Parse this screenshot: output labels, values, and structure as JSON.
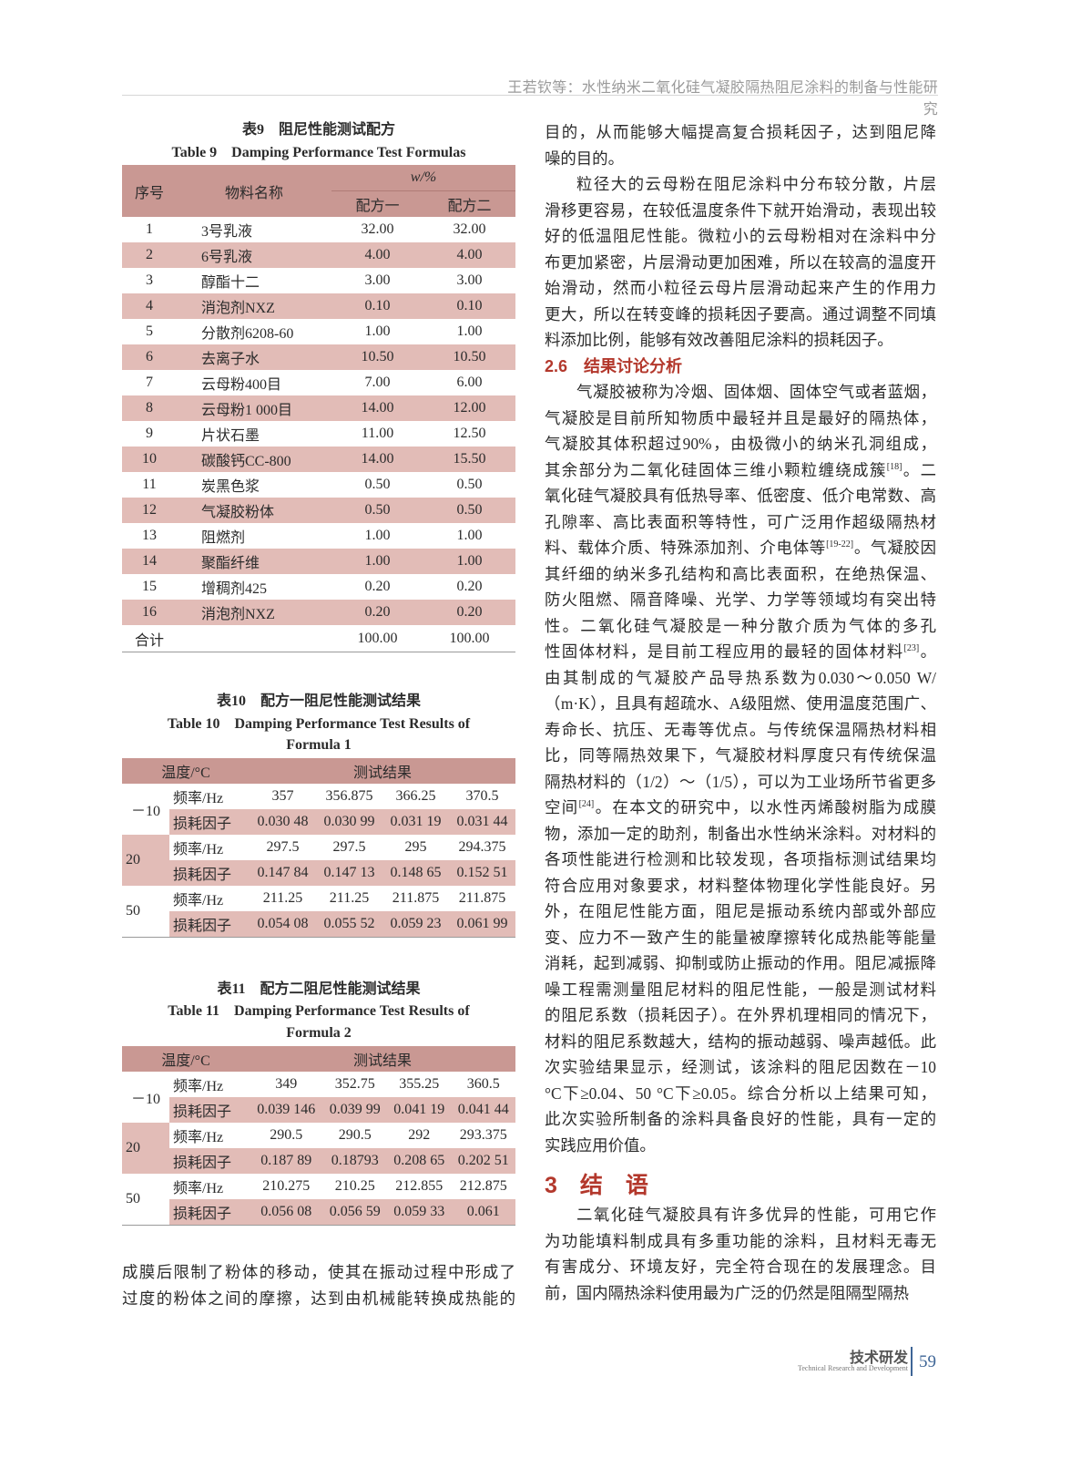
{
  "header": {
    "running_title": "王若钦等：水性纳米二氧化硅气凝胶隔热阻尼涂料的制备与性能研究"
  },
  "table9": {
    "title_cn": "表9　阻尼性能测试配方",
    "title_en": "Table 9　Damping Performance Test Formulas",
    "headers": {
      "no": "序号",
      "name": "物料名称",
      "unit": "w/%",
      "f1": "配方一",
      "f2": "配方二"
    },
    "rows": [
      [
        "1",
        "3号乳液",
        "32.00",
        "32.00"
      ],
      [
        "2",
        "6号乳液",
        "4.00",
        "4.00"
      ],
      [
        "3",
        "醇酯十二",
        "3.00",
        "3.00"
      ],
      [
        "4",
        "消泡剂NXZ",
        "0.10",
        "0.10"
      ],
      [
        "5",
        "分散剂6208-60",
        "1.00",
        "1.00"
      ],
      [
        "6",
        "去离子水",
        "10.50",
        "10.50"
      ],
      [
        "7",
        "云母粉400目",
        "7.00",
        "6.00"
      ],
      [
        "8",
        "云母粉1 000目",
        "14.00",
        "12.00"
      ],
      [
        "9",
        "片状石墨",
        "11.00",
        "12.50"
      ],
      [
        "10",
        "碳酸钙CC-800",
        "14.00",
        "15.50"
      ],
      [
        "11",
        "炭黑色浆",
        "0.50",
        "0.50"
      ],
      [
        "12",
        "气凝胶粉体",
        "0.50",
        "0.50"
      ],
      [
        "13",
        "阻燃剂",
        "1.00",
        "1.00"
      ],
      [
        "14",
        "聚酯纤维",
        "1.00",
        "1.00"
      ],
      [
        "15",
        "增稠剂425",
        "0.20",
        "0.20"
      ],
      [
        "16",
        "消泡剂NXZ",
        "0.20",
        "0.20"
      ]
    ],
    "total": [
      "合计",
      "",
      "100.00",
      "100.00"
    ]
  },
  "table10": {
    "title_cn": "表10　配方一阻尼性能测试结果",
    "title_en_1": "Table 10　Damping Performance Test Results of",
    "title_en_2": "Formula 1",
    "headers": {
      "temp": "温度/°C",
      "result": "测试结果"
    },
    "groups": [
      {
        "temp": "－10",
        "freq_label": "频率/Hz",
        "freq": [
          "357",
          "356.875",
          "366.25",
          "370.5"
        ],
        "loss_label": "损耗因子",
        "loss": [
          "0.030 48",
          "0.030 99",
          "0.031 19",
          "0.031 44"
        ]
      },
      {
        "temp": "20",
        "freq_label": "频率/Hz",
        "freq": [
          "297.5",
          "297.5",
          "295",
          "294.375"
        ],
        "loss_label": "损耗因子",
        "loss": [
          "0.147 84",
          "0.147 13",
          "0.148 65",
          "0.152 51"
        ]
      },
      {
        "temp": "50",
        "freq_label": "频率/Hz",
        "freq": [
          "211.25",
          "211.25",
          "211.875",
          "211.875"
        ],
        "loss_label": "损耗因子",
        "loss": [
          "0.054 08",
          "0.055 52",
          "0.059 23",
          "0.061 99"
        ]
      }
    ]
  },
  "table11": {
    "title_cn": "表11　配方二阻尼性能测试结果",
    "title_en_1": "Table 11　Damping Performance Test Results of",
    "title_en_2": "Formula 2",
    "headers": {
      "temp": "温度/°C",
      "result": "测试结果"
    },
    "groups": [
      {
        "temp": "－10",
        "freq_label": "频率/Hz",
        "freq": [
          "349",
          "352.75",
          "355.25",
          "360.5"
        ],
        "loss_label": "损耗因子",
        "loss": [
          "0.039 146",
          "0.039 99",
          "0.041 19",
          "0.041 44"
        ]
      },
      {
        "temp": "20",
        "freq_label": "频率/Hz",
        "freq": [
          "290.5",
          "290.5",
          "292",
          "293.375"
        ],
        "loss_label": "损耗因子",
        "loss": [
          "0.187 89",
          "0.18793",
          "0.208 65",
          "0.202 51"
        ]
      },
      {
        "temp": "50",
        "freq_label": "频率/Hz",
        "freq": [
          "210.275",
          "210.25",
          "212.855",
          "212.875"
        ],
        "loss_label": "损耗因子",
        "loss": [
          "0.056 08",
          "0.056 59",
          "0.059 33",
          "0.061"
        ]
      }
    ]
  },
  "left_text": {
    "lines": [
      {
        "t": "成膜后限制了粉体的移动，使其在振动过程中形成了"
      },
      {
        "t": "过度的粉体之间的摩擦，达到由机械能转换成热能的"
      }
    ]
  },
  "right_text": {
    "p1": [
      {
        "t": "目的，从而能够大幅提高复合损耗因子，达到阻尼降"
      },
      {
        "t": "噪的目的。"
      }
    ],
    "p2": [
      {
        "t": "粒径大的云母粉在阻尼涂料中分布较分散，片层"
      },
      {
        "t": "滑移更容易，在较低温度条件下就开始滑动，表现出较"
      },
      {
        "t": "好的低温阻尼性能。微粒小的云母粉相对在涂料中分"
      },
      {
        "t": "布更加紧密，片层滑动更加困难，所以在较高的温度开"
      },
      {
        "t": "始滑动，然而小粒径云母片层滑动起来产生的作用力"
      },
      {
        "t": "更大，所以在转变峰的损耗因子要高。通过调整不同填"
      },
      {
        "t": "料添加比例，能够有效改善阻尼涂料的损耗因子。"
      }
    ],
    "section_2_6": "2.6　结果讨论分析",
    "p3": [
      {
        "t": "气凝胶被称为冷烟、固体烟、固体空气或者蓝烟，"
      },
      {
        "t": "气凝胶是目前所知物质中最轻并且是最好的隔热体，"
      },
      {
        "t": "气凝胶其体积超过90%，由极微小的纳米孔洞组成，"
      },
      {
        "t": "其余部分为二氧化硅固体三维小颗粒缠绕成簇",
        "sup": "[18]",
        "post": "。二"
      },
      {
        "t": "氧化硅气凝胶具有低热导率、低密度、低介电常数、高"
      },
      {
        "t": "孔隙率、高比表面积等特性，可广泛用作超级隔热材"
      },
      {
        "t": "料、载体介质、特殊添加剂、介电体等",
        "sup": "[19-22]",
        "post": "。气凝胶因"
      },
      {
        "t": "其纤细的纳米多孔结构和高比表面积，在绝热保温、"
      },
      {
        "t": "防火阻燃、隔音降噪、光学、力学等领域均有突出特"
      },
      {
        "t": "性。二氧化硅气凝胶是一种分散介质为气体的多孔"
      },
      {
        "t": "性固体材料，是目前工程应用的最轻的固体材料",
        "sup": "[23]",
        "post": "。"
      },
      {
        "t": "由其制成的气凝胶产品导热系数为0.030～0.050 W/"
      },
      {
        "t": "（m·K），且具有超疏水、A级阻燃、使用温度范围广、"
      },
      {
        "t": "寿命长、抗压、无毒等优点。与传统保温隔热材料相"
      },
      {
        "t": "比，同等隔热效果下，气凝胶材料厚度只有传统保温"
      },
      {
        "t": "隔热材料的（1/2）～（1/5），可以为工业场所节省更多"
      },
      {
        "t": "空间",
        "sup": "[24]",
        "post": "。在本文的研究中，以水性丙烯酸树脂为成膜"
      },
      {
        "t": "物，添加一定的助剂，制备出水性纳米涂料。对材料的"
      },
      {
        "t": "各项性能进行检测和比较发现，各项指标测试结果均"
      },
      {
        "t": "符合应用对象要求，材料整体物理化学性能良好。另"
      },
      {
        "t": "外，在阻尼性能方面，阻尼是振动系统内部或外部应"
      },
      {
        "t": "变、应力不一致产生的能量被摩擦转化成热能等能量"
      },
      {
        "t": "消耗，起到减弱、抑制或防止振动的作用。阻尼减振降"
      },
      {
        "t": "噪工程需测量阻尼材料的阻尼性能，一般是测试材料"
      },
      {
        "t": "的阻尼系数（损耗因子）。在外界机理相同的情况下，"
      },
      {
        "t": "材料的阻尼系数越大，结构的振动越弱、噪声越低。此"
      },
      {
        "t": "次实验结果显示，经测试，该涂料的阻尼因数在－10"
      },
      {
        "t": "°C下≥0.04、50 °C下≥0.05。综合分析以上结果可知，"
      },
      {
        "t": "此次实验所制备的涂料具备良好的性能，具有一定的"
      },
      {
        "t": "实践应用价值。"
      }
    ],
    "section_3": "3　结　语",
    "p4": [
      {
        "t": "二氧化硅气凝胶具有许多优异的性能，可用它作"
      },
      {
        "t": "为功能填料制成具有多重功能的涂料，且材料无毒无"
      },
      {
        "t": "有害成分、环境友好，完全符合现在的发展理念。目"
      },
      {
        "t": "前，国内隔热涂料使用最为广泛的仍然是阻隔型隔热"
      }
    ]
  },
  "footer": {
    "section_cn": "技术研发",
    "section_en": "Technical Research and Development",
    "page": "59"
  },
  "colors": {
    "table_header": "#c99893",
    "table_stripe": "#e2bcb7",
    "heading": "#b3382c",
    "footer_accent": "#3e6596"
  }
}
